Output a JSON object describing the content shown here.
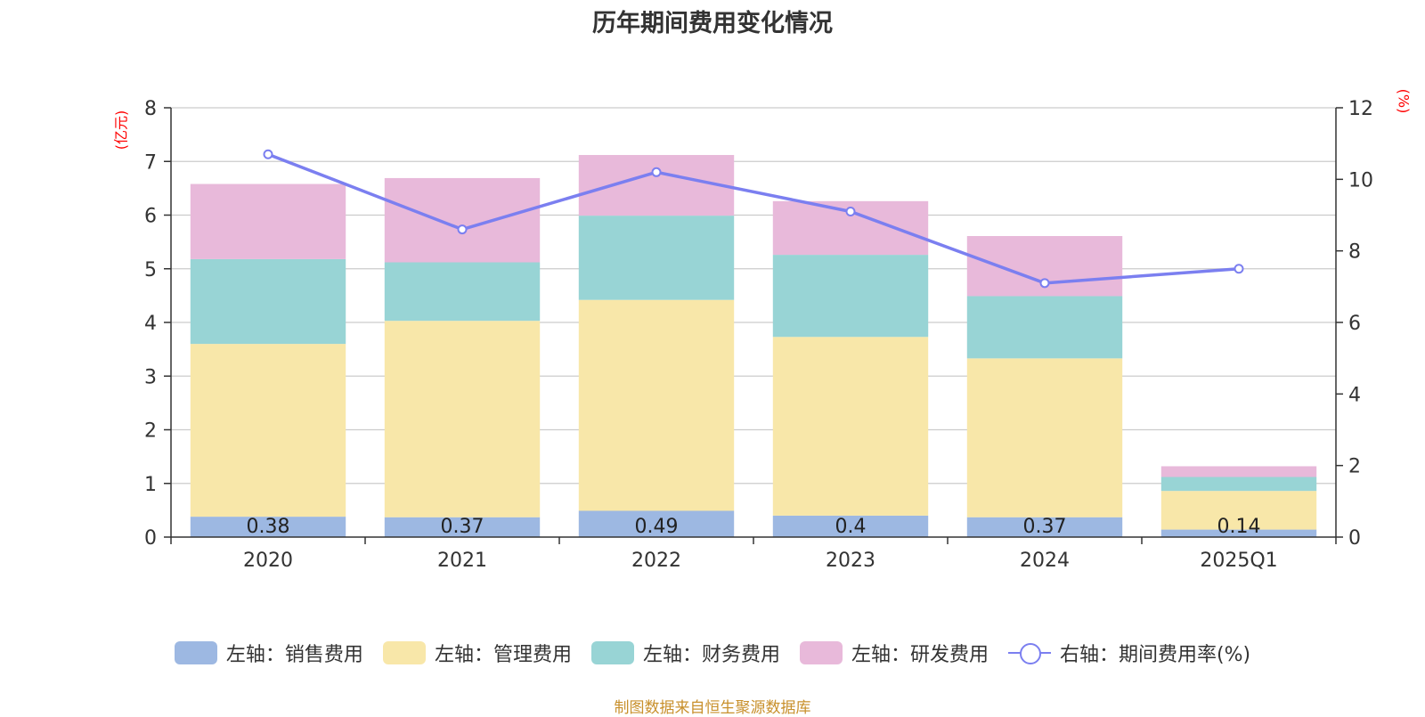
{
  "chart_data": {
    "type": "bar",
    "title": "历年期间费用变化情况",
    "left_unit": "(亿元)",
    "right_unit": "(%)",
    "categories": [
      "2020",
      "2021",
      "2022",
      "2023",
      "2024",
      "2025Q1"
    ],
    "left_axis": {
      "ylim": [
        0,
        8
      ],
      "ticks": [
        0,
        1,
        2,
        3,
        4,
        5,
        6,
        7,
        8
      ]
    },
    "right_axis": {
      "ylim": [
        0,
        12
      ],
      "ticks": [
        0,
        2,
        4,
        6,
        8,
        10,
        12
      ]
    },
    "grid": true,
    "legend_placement": "bottom",
    "series": [
      {
        "name": "左轴：销售费用",
        "kind": "bar",
        "stack": "left",
        "color": "#9db8e2",
        "values": [
          0.38,
          0.37,
          0.49,
          0.4,
          0.37,
          0.14
        ],
        "show_labels": true
      },
      {
        "name": "左轴：管理费用",
        "kind": "bar",
        "stack": "left",
        "color": "#f8e7a9",
        "values": [
          3.22,
          3.66,
          3.93,
          3.33,
          2.96,
          0.72
        ]
      },
      {
        "name": "左轴：财务费用",
        "kind": "bar",
        "stack": "left",
        "color": "#98d4d5",
        "values": [
          1.58,
          1.09,
          1.57,
          1.53,
          1.16,
          0.26
        ]
      },
      {
        "name": "左轴：研发费用",
        "kind": "bar",
        "stack": "left",
        "color": "#e8b9da",
        "values": [
          1.4,
          1.57,
          1.13,
          1.0,
          1.12,
          0.2
        ]
      },
      {
        "name": "右轴：期间费用率(%)",
        "kind": "line",
        "axis": "right",
        "color": "#7b7ff0",
        "values": [
          10.7,
          8.6,
          10.2,
          9.1,
          7.1,
          7.5
        ]
      }
    ],
    "source": "制图数据来自恒生聚源数据库"
  }
}
